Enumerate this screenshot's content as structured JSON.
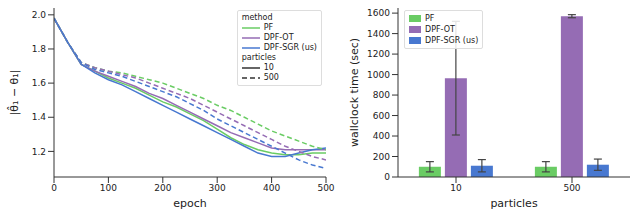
{
  "chart_data": [
    {
      "type": "line",
      "x_label": "epoch",
      "y_label": "|θ̂₁ − θ₁|",
      "x": [
        0,
        25,
        50,
        75,
        100,
        125,
        150,
        175,
        200,
        225,
        250,
        275,
        300,
        325,
        350,
        375,
        400,
        425,
        450,
        475,
        500
      ],
      "xlim": [
        0,
        500
      ],
      "xticks": [
        0,
        100,
        200,
        300,
        400,
        500
      ],
      "ylim": [
        1.05,
        2.04
      ],
      "yticks": [
        1.2,
        1.4,
        1.6,
        1.8,
        {
          "value": 2,
          "label": "2.0"
        }
      ],
      "legend": "upper right",
      "legend_titles": [
        "method",
        "particles"
      ],
      "methods": [
        {
          "name": "PF",
          "color": "#6acc64"
        },
        {
          "name": "DPF-OT",
          "color": "#956cb4"
        },
        {
          "name": "DPF-SGR (us)",
          "color": "#4878d0"
        }
      ],
      "particles": [
        {
          "name": "10",
          "line_style": "solid"
        },
        {
          "name": "500",
          "line_style": "dashed"
        }
      ],
      "series": [
        {
          "method": "PF",
          "particles": "10",
          "values": [
            1.98,
            1.84,
            1.71,
            1.67,
            1.63,
            1.6,
            1.57,
            1.53,
            1.49,
            1.46,
            1.42,
            1.38,
            1.33,
            1.28,
            1.24,
            1.21,
            1.19,
            1.18,
            1.18,
            1.19,
            1.19
          ]
        },
        {
          "method": "DPF-OT",
          "particles": "10",
          "values": [
            1.98,
            1.84,
            1.71,
            1.67,
            1.64,
            1.61,
            1.58,
            1.54,
            1.51,
            1.47,
            1.43,
            1.39,
            1.35,
            1.31,
            1.28,
            1.25,
            1.22,
            1.21,
            1.21,
            1.21,
            1.21
          ]
        },
        {
          "method": "DPF-SGR (us)",
          "particles": "10",
          "values": [
            1.98,
            1.84,
            1.71,
            1.66,
            1.62,
            1.59,
            1.55,
            1.51,
            1.47,
            1.43,
            1.39,
            1.35,
            1.31,
            1.27,
            1.23,
            1.19,
            1.17,
            1.17,
            1.19,
            1.21,
            1.22
          ]
        },
        {
          "method": "PF",
          "particles": "500",
          "values": [
            1.98,
            1.84,
            1.72,
            1.69,
            1.67,
            1.66,
            1.64,
            1.62,
            1.6,
            1.57,
            1.54,
            1.51,
            1.47,
            1.44,
            1.4,
            1.36,
            1.32,
            1.29,
            1.26,
            1.23,
            1.21
          ]
        },
        {
          "method": "DPF-OT",
          "particles": "500",
          "values": [
            1.98,
            1.84,
            1.72,
            1.69,
            1.67,
            1.65,
            1.63,
            1.6,
            1.57,
            1.54,
            1.51,
            1.47,
            1.43,
            1.39,
            1.35,
            1.31,
            1.27,
            1.23,
            1.2,
            1.17,
            1.15
          ]
        },
        {
          "method": "DPF-SGR (us)",
          "particles": "500",
          "values": [
            1.98,
            1.84,
            1.72,
            1.68,
            1.66,
            1.64,
            1.61,
            1.58,
            1.55,
            1.52,
            1.48,
            1.44,
            1.39,
            1.35,
            1.31,
            1.27,
            1.23,
            1.19,
            1.15,
            1.12,
            1.1
          ]
        }
      ]
    },
    {
      "type": "bar",
      "x_label": "particles",
      "y_label": "wallclock time (sec)",
      "categories": [
        "10",
        "500"
      ],
      "ylim": [
        0,
        1650
      ],
      "yticks": [
        0,
        200,
        400,
        600,
        800,
        1000,
        1200,
        1400,
        1600
      ],
      "legend": "upper left",
      "series": [
        {
          "name": "PF",
          "color": "#6acc64",
          "values": [
            100,
            100
          ],
          "errors": [
            50,
            50
          ]
        },
        {
          "name": "DPF-OT",
          "color": "#956cb4",
          "values": [
            965,
            1570
          ],
          "errors": [
            555,
            15
          ]
        },
        {
          "name": "DPF-SGR (us)",
          "color": "#4878d0",
          "values": [
            110,
            120
          ],
          "errors": [
            60,
            55
          ]
        }
      ]
    }
  ]
}
